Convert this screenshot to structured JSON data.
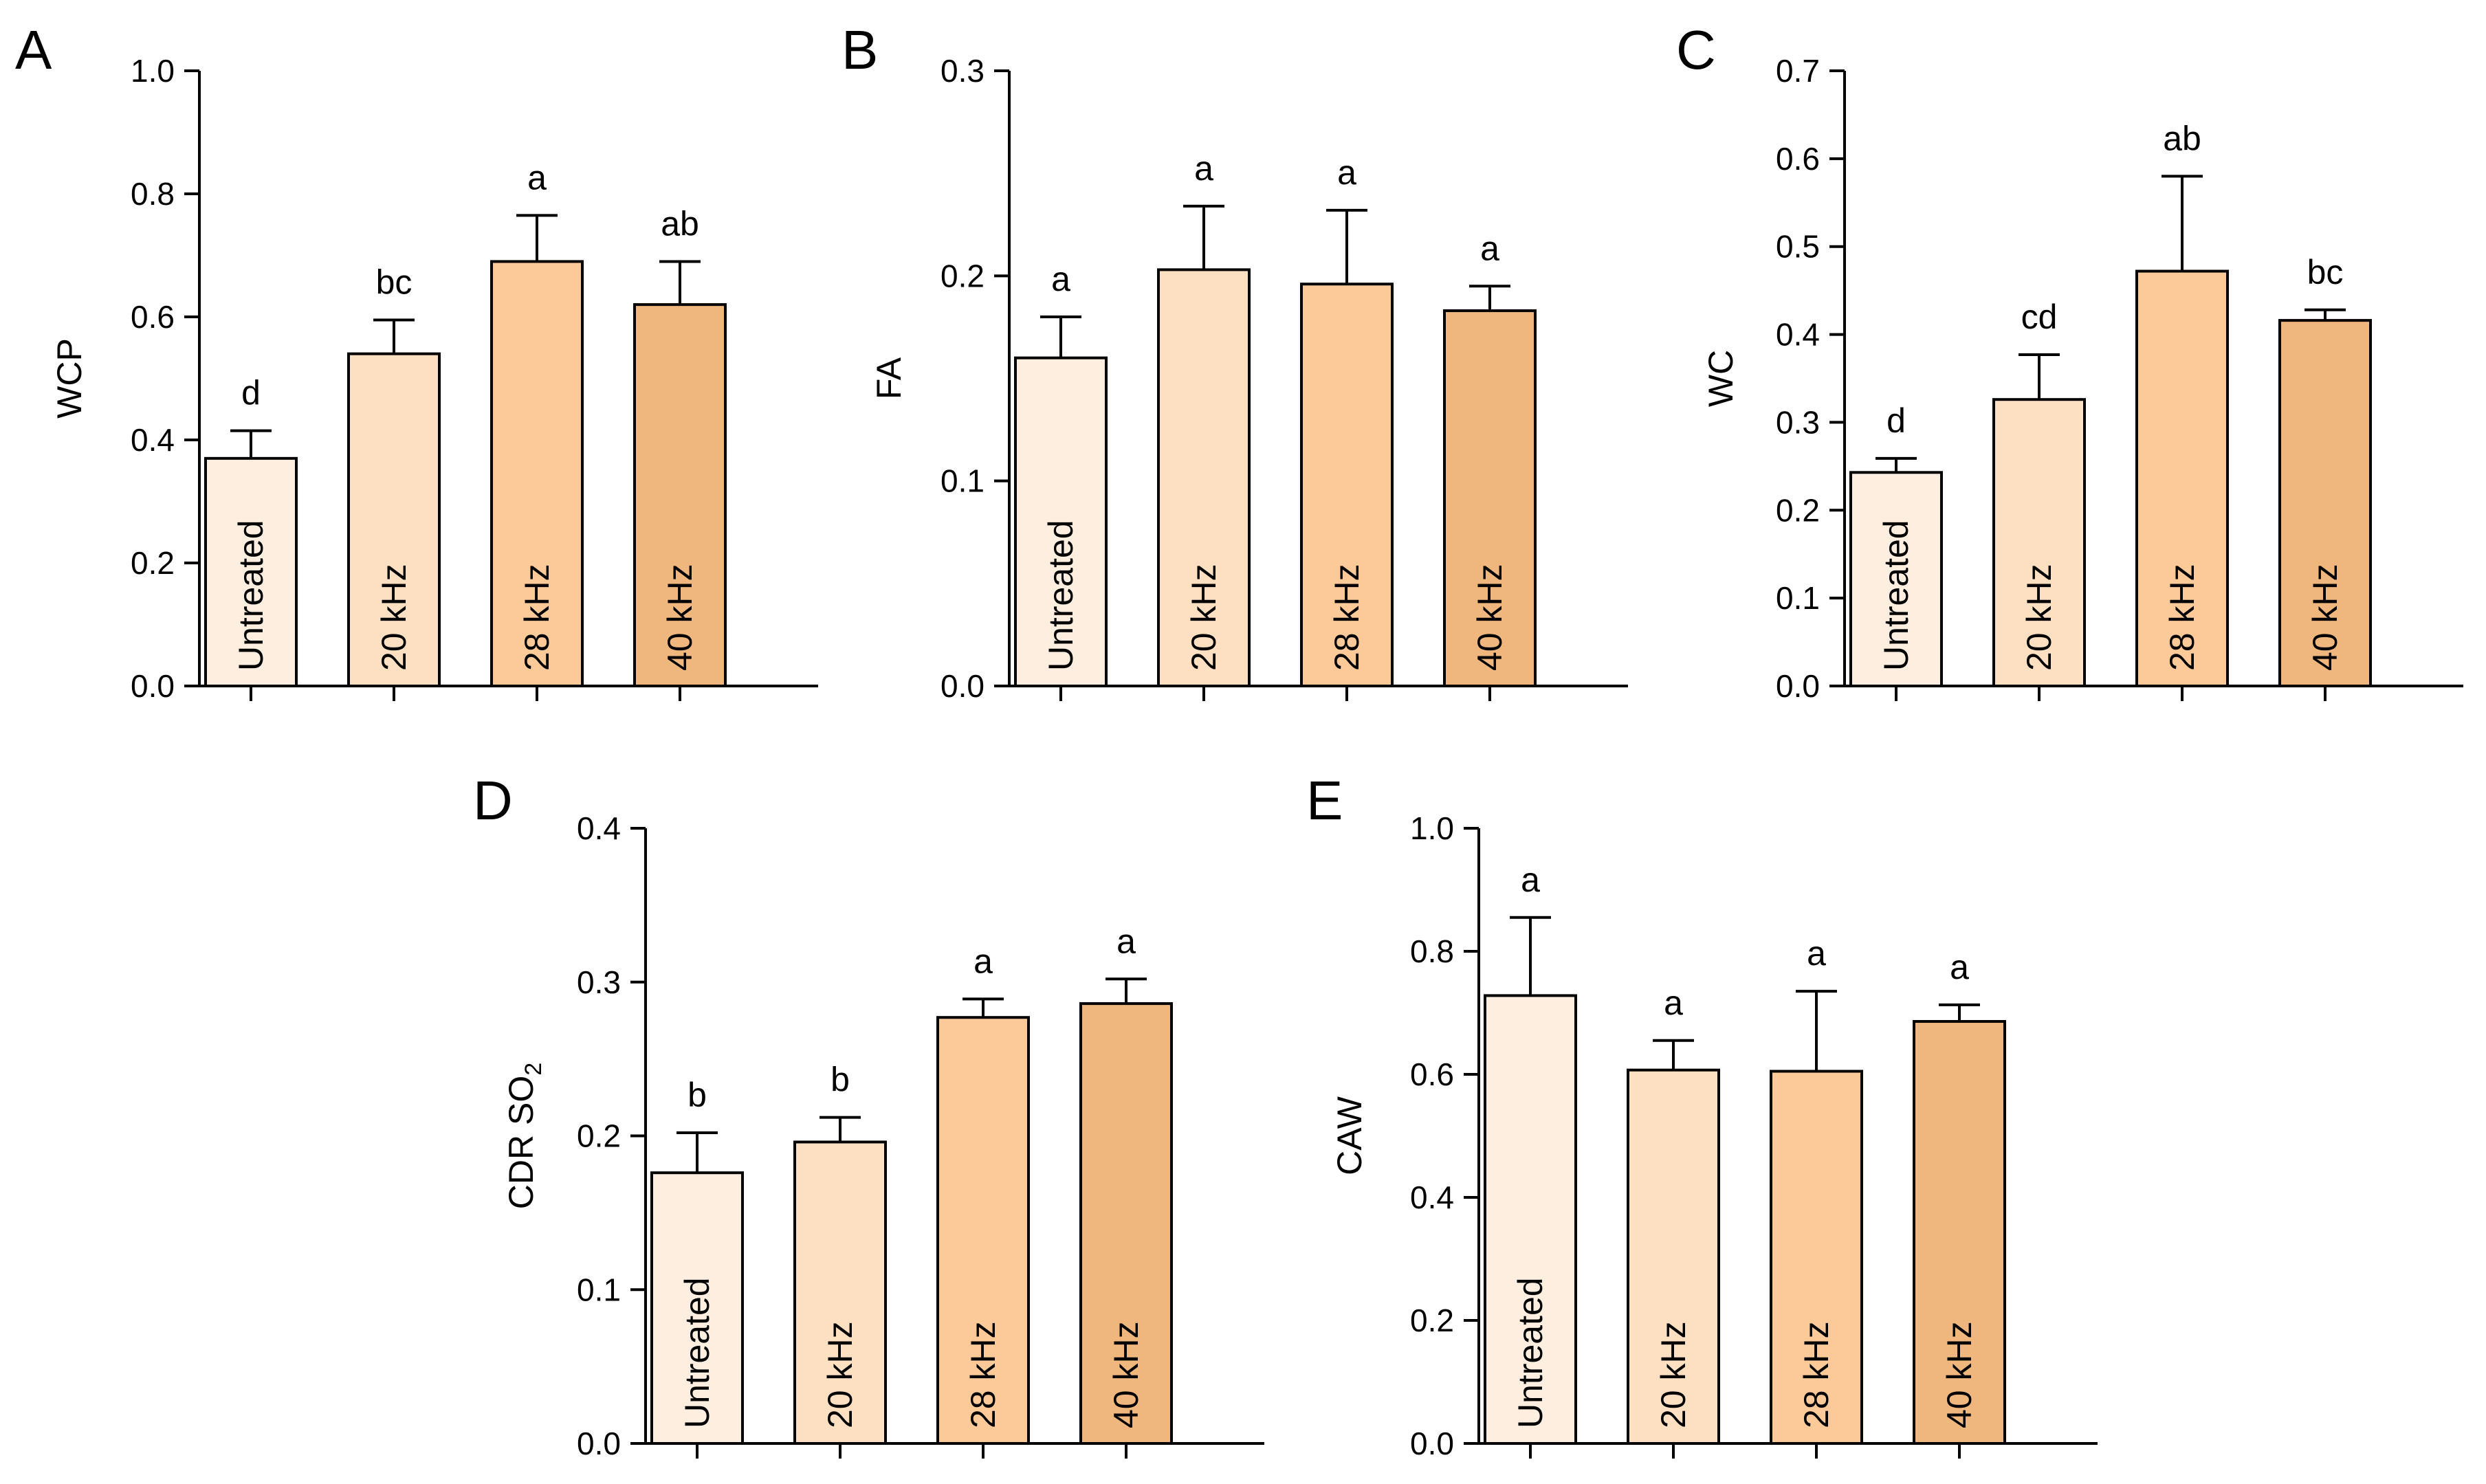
{
  "colors": {
    "untreated": "#fdeedf",
    "khz20": "#fddfc1",
    "khz28": "#fcca98",
    "khz40": "#efb77d",
    "stroke": "#000000"
  },
  "chart_data": [
    {
      "id": "A",
      "type": "bar",
      "panel_letter": "A",
      "ylabel": "WCP",
      "ylim": [
        0,
        1.0
      ],
      "yticks": [
        "0.0",
        "0.2",
        "0.4",
        "0.6",
        "0.8",
        "1.0"
      ],
      "categories": [
        "Untreated",
        "20 kHz",
        "28 kHz",
        "40 kHz"
      ],
      "values": [
        0.37,
        0.54,
        0.69,
        0.62
      ],
      "errors": [
        0.045,
        0.055,
        0.075,
        0.07
      ],
      "significance": [
        "d",
        "bc",
        "a",
        "ab"
      ]
    },
    {
      "id": "B",
      "type": "bar",
      "panel_letter": "B",
      "ylabel": "FA",
      "ylim": [
        0,
        0.3
      ],
      "yticks": [
        "0.0",
        "0.1",
        "0.2",
        "0.3"
      ],
      "categories": [
        "Untreated",
        "20 kHz",
        "28 kHz",
        "40 kHz"
      ],
      "values": [
        0.16,
        0.203,
        0.196,
        0.183
      ],
      "errors": [
        0.02,
        0.031,
        0.036,
        0.012
      ],
      "significance": [
        "a",
        "a",
        "a",
        "a"
      ]
    },
    {
      "id": "C",
      "type": "bar",
      "panel_letter": "C",
      "ylabel": "WC",
      "ylim": [
        0,
        0.7
      ],
      "yticks": [
        "0.0",
        "0.1",
        "0.2",
        "0.3",
        "0.4",
        "0.5",
        "0.6",
        "0.7"
      ],
      "categories": [
        "Untreated",
        "20 kHz",
        "28 kHz",
        "40 kHz"
      ],
      "values": [
        0.243,
        0.326,
        0.472,
        0.416
      ],
      "errors": [
        0.016,
        0.051,
        0.108,
        0.012
      ],
      "significance": [
        "d",
        "cd",
        "ab",
        "bc"
      ]
    },
    {
      "id": "D",
      "type": "bar",
      "panel_letter": "D",
      "ylabel": "CDR SO",
      "ylabel_sub": "2",
      "ylim": [
        0,
        0.4
      ],
      "yticks": [
        "0.0",
        "0.1",
        "0.2",
        "0.3",
        "0.4"
      ],
      "categories": [
        "Untreated",
        "20 kHz",
        "28 kHz",
        "40 kHz"
      ],
      "values": [
        0.176,
        0.196,
        0.277,
        0.286
      ],
      "errors": [
        0.026,
        0.016,
        0.012,
        0.016
      ],
      "significance": [
        "b",
        "b",
        "a",
        "a"
      ]
    },
    {
      "id": "E",
      "type": "bar",
      "panel_letter": "E",
      "ylabel": "CAW",
      "ylim": [
        0,
        1.0
      ],
      "yticks": [
        "0.0",
        "0.2",
        "0.4",
        "0.6",
        "0.8",
        "1.0"
      ],
      "categories": [
        "Untreated",
        "20 kHz",
        "28 kHz",
        "40 kHz"
      ],
      "values": [
        0.728,
        0.607,
        0.605,
        0.686
      ],
      "errors": [
        0.127,
        0.048,
        0.13,
        0.027
      ],
      "significance": [
        "a",
        "a",
        "a",
        "a"
      ]
    }
  ]
}
